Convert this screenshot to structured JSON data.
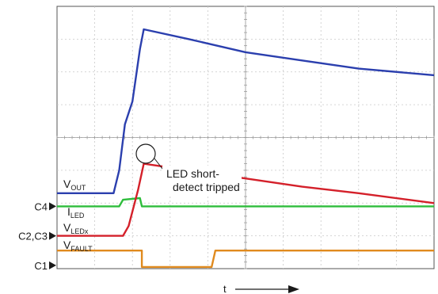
{
  "chart_data": {
    "type": "line",
    "title": "",
    "xlabel": "t",
    "ylabel": "",
    "grid": true,
    "x_divisions": 10,
    "y_divisions": 8,
    "channel_markers": [
      {
        "label": "C4",
        "level": 1.9
      },
      {
        "label": "C2,C3",
        "level": 1.0
      },
      {
        "label": "C1",
        "level": 0.1
      }
    ],
    "series": [
      {
        "name": "V",
        "subscript": "OUT",
        "color": "#2b3fae",
        "points": [
          [
            0,
            2.3
          ],
          [
            1.5,
            2.3
          ],
          [
            1.65,
            3.0
          ],
          [
            1.8,
            4.4
          ],
          [
            2.0,
            5.1
          ],
          [
            2.2,
            6.7
          ],
          [
            2.3,
            7.3
          ],
          [
            3.5,
            7.0
          ],
          [
            5.0,
            6.6
          ],
          [
            6.5,
            6.35
          ],
          [
            8.0,
            6.1
          ],
          [
            10.0,
            5.9
          ]
        ]
      },
      {
        "name": "I",
        "subscript": "LED",
        "color": "#2ebd3c",
        "points": [
          [
            0,
            1.9
          ],
          [
            1.65,
            1.9
          ],
          [
            1.75,
            2.1
          ],
          [
            2.2,
            2.15
          ],
          [
            2.25,
            1.9
          ],
          [
            10.0,
            1.9
          ]
        ]
      },
      {
        "name": "V",
        "subscript": "LEDx",
        "color": "#d4202a",
        "points": [
          [
            0,
            1.0
          ],
          [
            1.75,
            1.0
          ],
          [
            1.9,
            1.3
          ],
          [
            2.15,
            2.4
          ],
          [
            2.3,
            3.2
          ],
          [
            3.5,
            3.0
          ],
          [
            5.0,
            2.75
          ],
          [
            6.5,
            2.5
          ],
          [
            8.0,
            2.3
          ],
          [
            10.0,
            2.0
          ]
        ]
      },
      {
        "name": "V",
        "subscript": "FAULT",
        "color": "#e08a1e",
        "points": [
          [
            0,
            0.55
          ],
          [
            2.25,
            0.55
          ],
          [
            2.25,
            0.05
          ],
          [
            4.1,
            0.05
          ],
          [
            4.2,
            0.55
          ],
          [
            10.0,
            0.55
          ]
        ]
      }
    ],
    "annotations": [
      {
        "text": "LED short-",
        "text2": "detect tripped"
      }
    ]
  }
}
